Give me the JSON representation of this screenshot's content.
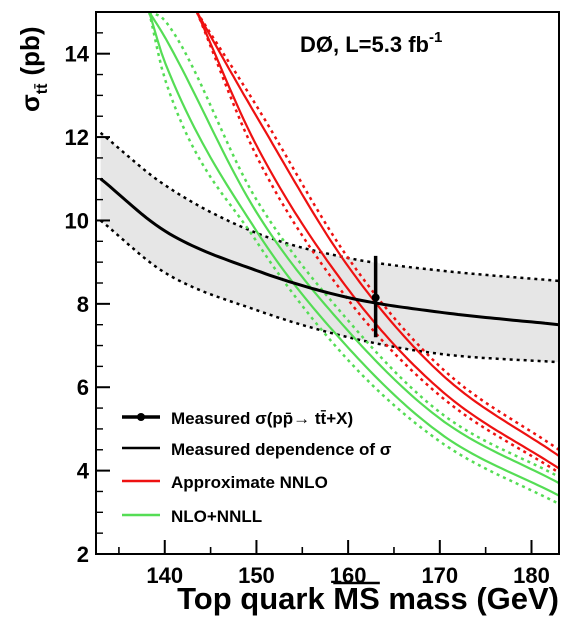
{
  "chart_data": {
    "type": "line",
    "annotation": "DØ, L=5.3 fb",
    "annotation_exp": "-1",
    "ylabel": "σ",
    "ylabel_sub": "tt̄",
    "ylabel_unit": "(pb)",
    "xlabel": "Top quark MS mass (GeV)",
    "xlabel_overlined_part": "MS",
    "xlim": [
      132.5,
      183
    ],
    "ylim": [
      2,
      15
    ],
    "x_ticks": [
      140,
      150,
      160,
      170,
      180
    ],
    "y_ticks": [
      2,
      4,
      6,
      8,
      10,
      12,
      14
    ],
    "grid": false,
    "legend_position": "bottom-left",
    "measured_point": {
      "x": 163.0,
      "y": 8.15,
      "err_low": 7.2,
      "err_high": 9.15
    },
    "series": [
      {
        "name": "Measured dependence of σ",
        "color": "#000000",
        "x": [
          133,
          140,
          150,
          160,
          170,
          183
        ],
        "y": [
          11.0,
          9.75,
          8.8,
          8.15,
          7.8,
          7.5
        ],
        "band_upper": [
          12.1,
          10.85,
          9.7,
          9.1,
          8.8,
          8.55
        ],
        "band_lower": [
          10.0,
          8.75,
          7.85,
          7.2,
          6.8,
          6.6
        ],
        "band_color": "#e6e6e6"
      },
      {
        "name": "Approximate NNLO",
        "color": "#ee1111",
        "x": [
          143.5,
          150,
          160,
          170,
          183
        ],
        "y": [
          15.0,
          12.1,
          8.6,
          6.15,
          4.2
        ],
        "upper": [
          15.0,
          12.5,
          8.9,
          6.35,
          4.35
        ],
        "lower": [
          15.0,
          11.8,
          8.35,
          5.95,
          4.05
        ],
        "upper_dotted": [
          15.0,
          12.75,
          9.1,
          6.5,
          4.5
        ],
        "lower_dotted": [
          15.0,
          11.55,
          8.1,
          5.8,
          3.95
        ]
      },
      {
        "name": "NLO+NNLL",
        "color": "#55dd55",
        "x": [
          138.3,
          140,
          150,
          160,
          170,
          183
        ],
        "y": [
          15.0,
          14.1,
          10.0,
          7.1,
          5.05,
          3.5
        ],
        "upper": [
          15.0,
          14.4,
          10.2,
          7.35,
          5.25,
          3.7
        ],
        "lower": [
          15.0,
          13.8,
          9.75,
          6.95,
          4.9,
          3.4
        ],
        "upper_dotted": [
          15.0,
          14.8,
          10.5,
          7.6,
          5.4,
          3.85
        ],
        "lower_dotted": [
          15.0,
          13.4,
          9.5,
          6.65,
          4.7,
          3.2
        ]
      }
    ],
    "legend": [
      {
        "label": "Measured σ(pp̄→ tt̄+X)",
        "style": "point"
      },
      {
        "label": "Measured dependence of σ",
        "style": "line",
        "color": "#000000"
      },
      {
        "label": "Approximate NNLO",
        "style": "line",
        "color": "#ee1111"
      },
      {
        "label": "NLO+NNLL",
        "style": "line",
        "color": "#55dd55"
      }
    ]
  }
}
